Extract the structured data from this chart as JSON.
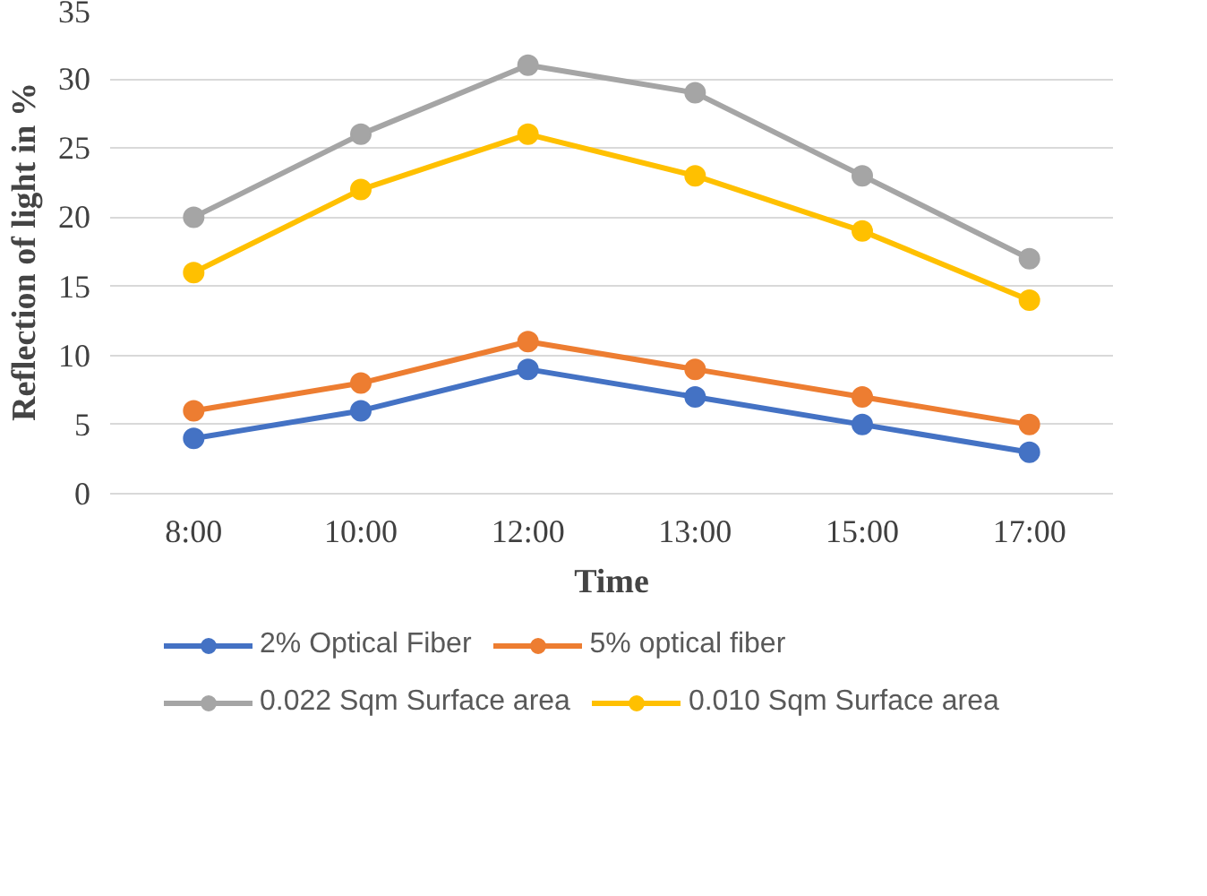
{
  "chart_data": {
    "type": "line",
    "xlabel": "Time",
    "ylabel": "Reflection of light in %",
    "categories": [
      "8:00",
      "10:00",
      "12:00",
      "13:00",
      "15:00",
      "17:00"
    ],
    "series": [
      {
        "name": "2% Optical Fiber",
        "color": "#4472c4",
        "values": [
          4,
          6,
          9,
          7,
          5,
          3
        ]
      },
      {
        "name": "5% optical fiber",
        "color": "#ed7d31",
        "values": [
          6,
          8,
          11,
          9,
          7,
          5
        ]
      },
      {
        "name": "0.022 Sqm Surface area",
        "color": "#a5a5a5",
        "values": [
          20,
          26,
          31,
          29,
          23,
          17
        ]
      },
      {
        "name": "0.010 Sqm Surface area",
        "color": "#ffc000",
        "values": [
          16,
          22,
          26,
          23,
          19,
          14
        ]
      }
    ],
    "ylim": [
      0,
      35
    ],
    "yticks": [
      0,
      5,
      10,
      15,
      20,
      25,
      30,
      35
    ],
    "grid": "y",
    "legend": "bottom",
    "marker": "circle",
    "line_style": "solid"
  }
}
